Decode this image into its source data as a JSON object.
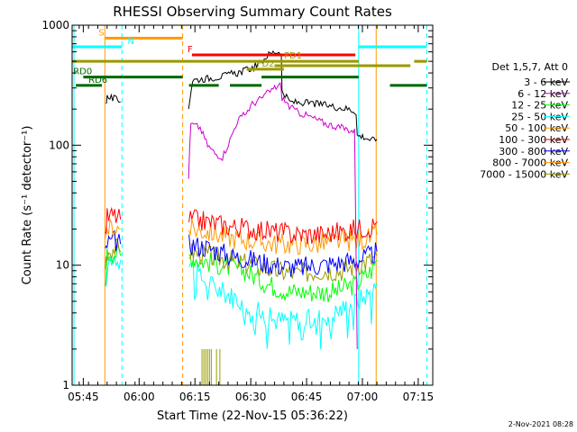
{
  "chart_data": {
    "type": "line",
    "title": "RHESSI Observing Summary Count Rates",
    "xlabel": "Start Time (22-Nov-15 05:36:22)",
    "ylabel": "Count Rate (s⁻¹ detector⁻¹)",
    "yscale": "log",
    "ylim": [
      1,
      1000
    ],
    "xlim_minutes": [
      5.6,
      102.5
    ],
    "y_ticks": [
      {
        "v": 1,
        "label": "1"
      },
      {
        "v": 10,
        "label": "10"
      },
      {
        "v": 100,
        "label": "100"
      },
      {
        "v": 1000,
        "label": "1000"
      }
    ],
    "x_ticks": [
      {
        "m": 8.6,
        "label": "05:45"
      },
      {
        "m": 23.6,
        "label": "06:00"
      },
      {
        "m": 38.6,
        "label": "06:15"
      },
      {
        "m": 53.6,
        "label": "06:30"
      },
      {
        "m": 68.6,
        "label": "06:45"
      },
      {
        "m": 83.6,
        "label": "07:00"
      },
      {
        "m": 98.6,
        "label": "07:15"
      }
    ],
    "legend_title": "Det 1,5,7, Att 0",
    "legend_placement": "right",
    "timestamp": "2-Nov-2021 08:28",
    "series": [
      {
        "name": "3 - 6 keV",
        "color": "#000000",
        "segments": [
          [
            [
              14.7,
              230
            ],
            [
              15.0,
              250
            ],
            [
              16.5,
              245
            ],
            [
              17.5,
              240
            ],
            [
              18.6,
              230
            ]
          ],
          [
            [
              36.9,
              210
            ],
            [
              38.0,
              350
            ],
            [
              42.0,
              360
            ],
            [
              46.0,
              375
            ],
            [
              48.0,
              390
            ],
            [
              50.0,
              400
            ],
            [
              52.0,
              420
            ],
            [
              54.0,
              440
            ],
            [
              56.0,
              480
            ],
            [
              58.0,
              560
            ],
            [
              60.0,
              600
            ],
            [
              61.8,
              600
            ],
            [
              62.0,
              280
            ],
            [
              64.0,
              230
            ],
            [
              68.0,
              225
            ],
            [
              72.0,
              220
            ],
            [
              76.0,
              210
            ],
            [
              80.0,
              200
            ],
            [
              81.9,
              190
            ],
            [
              82.2,
              120
            ],
            [
              84.0,
              118
            ],
            [
              86.0,
              110
            ],
            [
              87.5,
              112
            ]
          ]
        ]
      },
      {
        "name": "6 - 12 keV",
        "color": "#cc00cc",
        "segments": [
          [
            [
              36.9,
              55
            ],
            [
              37.5,
              150
            ],
            [
              40.0,
              140
            ],
            [
              42.0,
              100
            ],
            [
              44.0,
              85
            ],
            [
              46.0,
              80
            ],
            [
              48.0,
              110
            ],
            [
              50.0,
              160
            ],
            [
              52.0,
              180
            ],
            [
              54.0,
              220
            ],
            [
              56.0,
              240
            ],
            [
              58.0,
              270
            ],
            [
              60.0,
              300
            ],
            [
              61.5,
              320
            ],
            [
              62.0,
              250
            ],
            [
              64.0,
              210
            ],
            [
              66.0,
              190
            ],
            [
              70.0,
              170
            ],
            [
              74.0,
              150
            ],
            [
              78.0,
              140
            ],
            [
              81.5,
              130
            ],
            [
              82.2,
              2
            ]
          ]
        ]
      },
      {
        "name": "12 - 25 keV",
        "color": "#00ff00",
        "segments": [
          [
            [
              14.5,
              7
            ],
            [
              15.0,
              12
            ],
            [
              17.0,
              13
            ],
            [
              18.6,
              12
            ]
          ],
          [
            [
              37.0,
              12
            ],
            [
              40.0,
              11
            ],
            [
              46.0,
              10
            ],
            [
              52.0,
              9
            ],
            [
              58.0,
              7
            ],
            [
              64.0,
              6
            ],
            [
              70.0,
              6
            ],
            [
              76.0,
              6
            ],
            [
              82.0,
              7
            ],
            [
              86.0,
              9
            ],
            [
              87.5,
              11
            ]
          ]
        ]
      },
      {
        "name": "25 - 50 keV",
        "color": "#00ffff",
        "segments": [
          [
            [
              14.5,
              6
            ],
            [
              15.0,
              11
            ],
            [
              17.0,
              12
            ],
            [
              18.6,
              11
            ]
          ],
          [
            [
              37.0,
              11
            ],
            [
              40.0,
              8
            ],
            [
              46.0,
              6
            ],
            [
              52.0,
              5
            ],
            [
              56.0,
              4
            ],
            [
              60.0,
              3.5
            ],
            [
              64.0,
              3.5
            ],
            [
              70.0,
              3.5
            ],
            [
              76.0,
              4
            ],
            [
              82.0,
              5
            ],
            [
              86.0,
              6
            ],
            [
              87.5,
              7
            ]
          ]
        ]
      },
      {
        "name": "50 - 100 keV",
        "color": "#ff9900",
        "segments": []
      },
      {
        "name": "100 - 300 keV",
        "color": "#ff0000",
        "segments": [
          [
            [
              14.5,
              18
            ],
            [
              15.0,
              25
            ],
            [
              17.0,
              26
            ],
            [
              18.6,
              24
            ]
          ],
          [
            [
              37.0,
              24
            ],
            [
              42.0,
              23
            ],
            [
              48.0,
              21
            ],
            [
              54.0,
              20
            ],
            [
              60.0,
              19
            ],
            [
              66.0,
              18
            ],
            [
              72.0,
              18
            ],
            [
              78.0,
              19
            ],
            [
              82.0,
              20
            ],
            [
              86.0,
              21
            ],
            [
              87.5,
              23
            ]
          ]
        ]
      },
      {
        "name": "300 - 800 keV",
        "color": "#0000ff",
        "segments": [
          [
            [
              14.5,
              12
            ],
            [
              15.0,
              15
            ],
            [
              17.0,
              16
            ],
            [
              18.6,
              15
            ]
          ],
          [
            [
              37.0,
              15
            ],
            [
              42.0,
              14
            ],
            [
              48.0,
              12
            ],
            [
              54.0,
              11
            ],
            [
              60.0,
              10
            ],
            [
              66.0,
              9.5
            ],
            [
              72.0,
              10
            ],
            [
              78.0,
              10.5
            ],
            [
              82.0,
              11
            ],
            [
              86.0,
              12
            ],
            [
              87.5,
              13
            ]
          ]
        ]
      },
      {
        "name": "800 - 7000 keV",
        "color": "#ff9900",
        "segments": [
          [
            [
              14.5,
              15
            ],
            [
              15.0,
              20
            ],
            [
              17.0,
              21
            ],
            [
              18.6,
              20
            ]
          ],
          [
            [
              37.0,
              20
            ],
            [
              42.0,
              19
            ],
            [
              48.0,
              17
            ],
            [
              54.0,
              16
            ],
            [
              60.0,
              15
            ],
            [
              66.0,
              15
            ],
            [
              72.0,
              15
            ],
            [
              78.0,
              16
            ],
            [
              82.0,
              16
            ],
            [
              86.0,
              17
            ],
            [
              87.5,
              18
            ]
          ]
        ]
      },
      {
        "name": "7000 - 15000 keV",
        "color": "#999900",
        "segments": [
          [
            [
              14.5,
              10
            ],
            [
              15.0,
              13
            ],
            [
              17.0,
              14
            ],
            [
              18.6,
              13
            ]
          ],
          [
            [
              37.0,
              13
            ],
            [
              42.0,
              12
            ],
            [
              48.0,
              11
            ],
            [
              54.0,
              10
            ],
            [
              60.0,
              9
            ],
            [
              66.0,
              8.5
            ],
            [
              72.0,
              9
            ],
            [
              78.0,
              9
            ],
            [
              82.0,
              10
            ],
            [
              86.0,
              11
            ],
            [
              87.5,
              12
            ]
          ]
        ]
      }
    ],
    "vertical_markers": [
      {
        "m": 6.1,
        "color": "#00ffff",
        "dashed": false
      },
      {
        "m": 14.4,
        "color": "#ff9900",
        "dashed": false
      },
      {
        "m": 19.0,
        "color": "#00ffff",
        "dashed": true
      },
      {
        "m": 35.3,
        "color": "#ff9900",
        "dashed": true
      },
      {
        "m": 82.6,
        "color": "#00ffff",
        "dashed": false
      },
      {
        "m": 87.3,
        "color": "#ff9900",
        "dashed": false
      },
      {
        "m": 100.9,
        "color": "#00ffff",
        "dashed": true
      }
    ],
    "flag_bars": [
      {
        "label": "S",
        "color": "#ff9900",
        "segments": [
          [
            14.5,
            35.3
          ]
        ],
        "y": 780,
        "label_at": 12.7
      },
      {
        "label": "N",
        "color": "#00ffff",
        "segments": [
          [
            5.6,
            19.0
          ],
          [
            82.6,
            100.9
          ]
        ],
        "y": 660,
        "label_at": 20.5
      },
      {
        "label": "F",
        "color": "#ff0000",
        "segments": [
          [
            37.8,
            81.7
          ]
        ],
        "y": 565,
        "label_at": 36.6
      },
      {
        "label": "FD1",
        "color": "#999900",
        "segments": [
          [
            5.6,
            82.6
          ],
          [
            97.5,
            100.9
          ]
        ],
        "y": 500,
        "label_at": 62.6
      },
      {
        "label": "",
        "color": "#999900",
        "segments": [
          [
            60.0,
            96.5
          ]
        ],
        "y": 460
      },
      {
        "label": "FD2",
        "color": "#999900",
        "segments": [
          [
            52.5,
            62.5
          ]
        ],
        "y": 430,
        "label_at": 55.2
      },
      {
        "label": "RD0",
        "color": "#006600",
        "segments": [
          [
            8.6,
            35.3
          ],
          [
            56.5,
            82.6
          ]
        ],
        "y": 370,
        "label_at": 5.9
      },
      {
        "label": "RD6",
        "color": "#006600",
        "segments": [
          [
            6.6,
            13.6
          ],
          [
            37.0,
            45.0
          ],
          [
            48.0,
            56.5
          ],
          [
            91.0,
            100.9
          ]
        ],
        "y": 315,
        "label_at": 10.0
      }
    ],
    "spike_marks": [
      {
        "m": 40.5,
        "y_top": 2
      },
      {
        "m": 41.0,
        "y_top": 2
      },
      {
        "m": 41.5,
        "y_top": 2
      },
      {
        "m": 42.0,
        "y_top": 2
      },
      {
        "m": 42.5,
        "y_top": 2
      },
      {
        "m": 43.0,
        "y_top": 2
      },
      {
        "m": 44.4,
        "y_top": 2
      },
      {
        "m": 45.3,
        "y_top": 2
      }
    ],
    "spike_color": "#999900"
  }
}
